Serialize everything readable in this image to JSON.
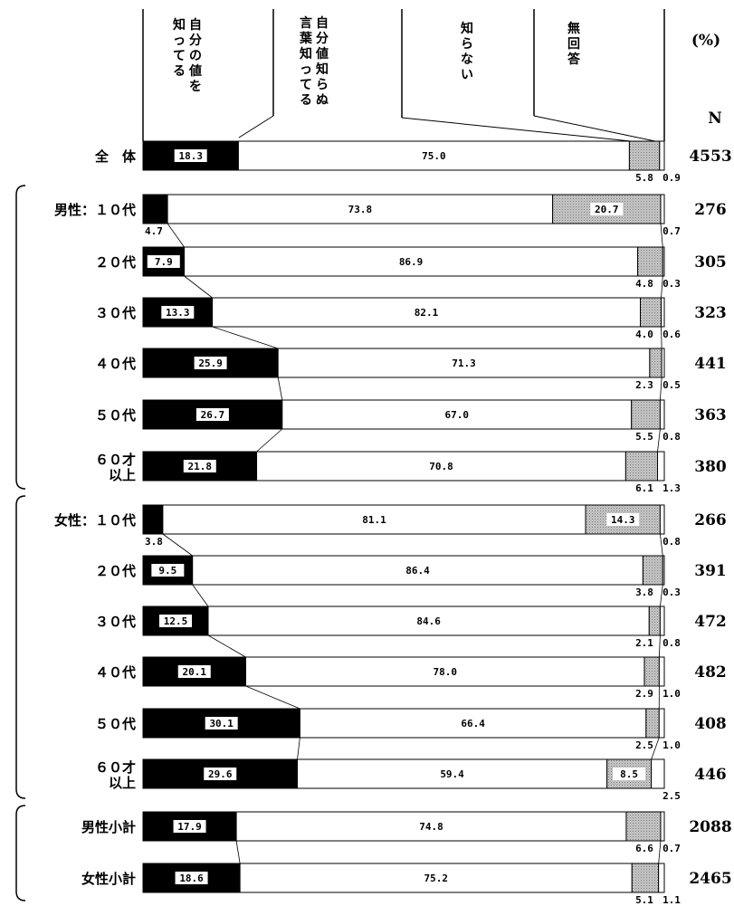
{
  "chart_data": {
    "type": "bar",
    "orientation": "horizontal",
    "stacked": "100%",
    "unit": "(%)",
    "n_header": "N",
    "series": [
      {
        "name": "自分の値を知ってる",
        "color": "#000000",
        "values": [
          18.3,
          4.7,
          7.9,
          13.3,
          25.9,
          26.7,
          21.8,
          3.8,
          9.5,
          12.5,
          20.1,
          30.1,
          29.6,
          17.9,
          18.6
        ]
      },
      {
        "name": "自分値知らぬ言葉知ってる",
        "color": "#ffffff",
        "values": [
          75.0,
          73.8,
          86.9,
          82.1,
          71.3,
          67.0,
          70.8,
          81.1,
          86.4,
          84.6,
          78.0,
          66.4,
          59.4,
          74.8,
          75.2
        ]
      },
      {
        "name": "知らない",
        "color": "#cccccc",
        "values": [
          5.8,
          20.7,
          4.8,
          4.0,
          2.3,
          5.5,
          6.1,
          14.3,
          3.8,
          2.1,
          2.9,
          2.5,
          8.5,
          6.6,
          5.1
        ]
      },
      {
        "name": "無回答",
        "color": "#ffffff",
        "values": [
          0.9,
          0.7,
          0.3,
          0.6,
          0.5,
          0.8,
          1.3,
          0.8,
          0.3,
          0.8,
          1.0,
          1.0,
          2.5,
          0.7,
          1.1
        ]
      }
    ],
    "series_labels": {
      "s0": [
        "自分の値を",
        "知ってる"
      ],
      "s1": [
        "自分値知らぬ",
        "言葉知ってる"
      ],
      "s2": [
        "知らない"
      ],
      "s3": [
        "無回答"
      ]
    },
    "value_text": [
      [
        "18.3",
        "75.0",
        "5.8",
        "0.9"
      ],
      [
        "4.7",
        "73.8",
        "20.7",
        "0.7"
      ],
      [
        "7.9",
        "86.9",
        "4.8",
        "0.3"
      ],
      [
        "13.3",
        "82.1",
        "4.0",
        "0.6"
      ],
      [
        "25.9",
        "71.3",
        "2.3",
        "0.5"
      ],
      [
        "26.7",
        "67.0",
        "5.5",
        "0.8"
      ],
      [
        "21.8",
        "70.8",
        "6.1",
        "1.3"
      ],
      [
        "3.8",
        "81.1",
        "14.3",
        "0.8"
      ],
      [
        "9.5",
        "86.4",
        "3.8",
        "0.3"
      ],
      [
        "12.5",
        "84.6",
        "2.1",
        "0.8"
      ],
      [
        "20.1",
        "78.0",
        "2.9",
        "1.0"
      ],
      [
        "30.1",
        "66.4",
        "2.5",
        "1.0"
      ],
      [
        "29.6",
        "59.4",
        "8.5",
        "2.5"
      ],
      [
        "17.9",
        "74.8",
        "6.6",
        "0.7"
      ],
      [
        "18.6",
        "75.2",
        "5.1",
        "1.1"
      ]
    ],
    "categories": [
      [
        "全　体"
      ],
      [
        "男性：１０代"
      ],
      [
        "２０代"
      ],
      [
        "３０代"
      ],
      [
        "４０代"
      ],
      [
        "５０代"
      ],
      [
        "６０才",
        "以上"
      ],
      [
        "女性：１０代"
      ],
      [
        "２０代"
      ],
      [
        "３０代"
      ],
      [
        "４０代"
      ],
      [
        "５０代"
      ],
      [
        "６０才",
        "以上"
      ],
      [
        "男性小計"
      ],
      [
        "女性小計"
      ]
    ],
    "n": [
      "4553",
      "276",
      "305",
      "323",
      "441",
      "363",
      "380",
      "266",
      "391",
      "472",
      "482",
      "408",
      "446",
      "2088",
      "2465"
    ]
  }
}
